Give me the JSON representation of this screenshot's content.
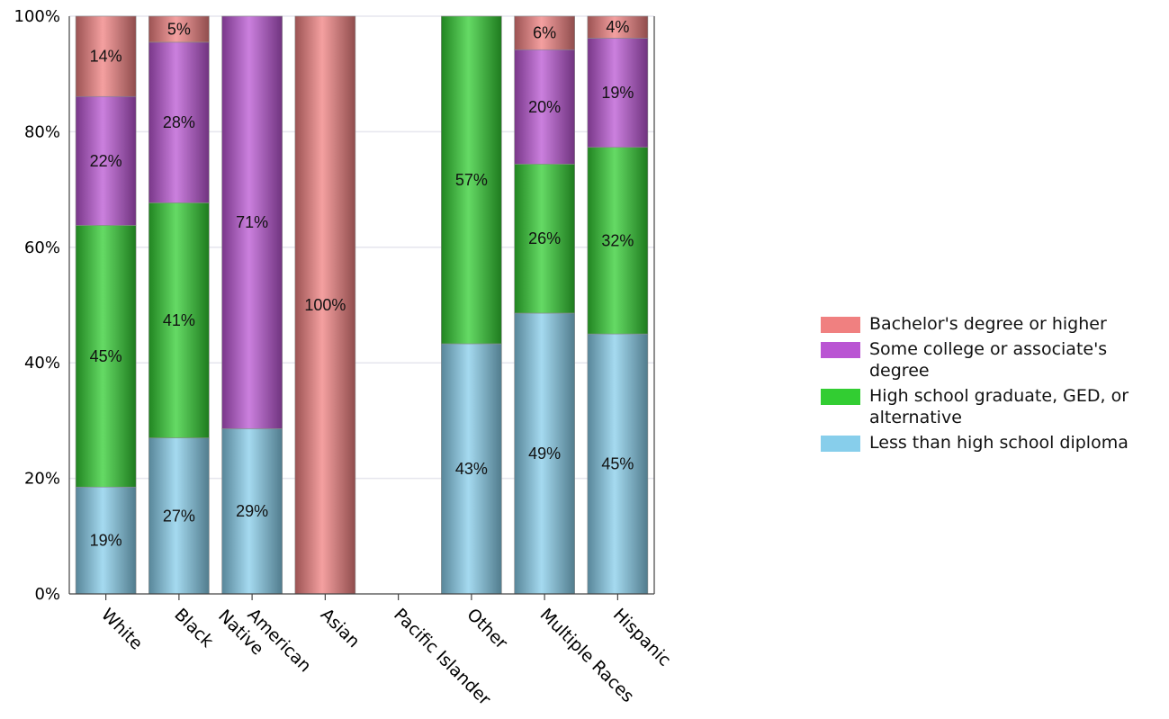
{
  "chart_data": {
    "type": "bar",
    "stacked": true,
    "categories": [
      "White",
      "Black",
      "American Native",
      "Asian",
      "Pacific Islander",
      "Other",
      "Multiple Races",
      "Hispanic"
    ],
    "category_lines": [
      [
        "White"
      ],
      [
        "Black"
      ],
      [
        "American",
        "Native"
      ],
      [
        "Asian"
      ],
      [
        "Pacific Islander"
      ],
      [
        "Other"
      ],
      [
        "Multiple Races"
      ],
      [
        "Hispanic"
      ]
    ],
    "series": [
      {
        "name": "Less than high school diploma",
        "color": "#87CEEB",
        "values": [
          18.5,
          27,
          28.6,
          0,
          0,
          43.3,
          48.6,
          45
        ],
        "labels": [
          "19%",
          "27%",
          "29%",
          "",
          "",
          "43%",
          "49%",
          "45%"
        ]
      },
      {
        "name": "High school graduate, GED, or alternative",
        "color": "#32CD32",
        "values": [
          45.3,
          40.7,
          0,
          0,
          0,
          56.7,
          25.8,
          32.3
        ],
        "labels": [
          "45%",
          "41%",
          "",
          "",
          "",
          "57%",
          "26%",
          "32%"
        ]
      },
      {
        "name": "Some college or associate's degree",
        "color": "#BA55D3",
        "values": [
          22.3,
          27.8,
          71.4,
          0,
          0,
          0,
          19.8,
          18.9
        ],
        "labels": [
          "22%",
          "28%",
          "71%",
          "",
          "",
          "",
          "20%",
          "19%"
        ]
      },
      {
        "name": "Bachelor's degree or higher",
        "color": "#F08080",
        "values": [
          13.9,
          4.5,
          0,
          100,
          0,
          0,
          5.8,
          3.8
        ],
        "labels": [
          "14%",
          "5%",
          "",
          "100%",
          "",
          "",
          "6%",
          "4%"
        ]
      }
    ],
    "y_ticks": [
      "0%",
      "20%",
      "40%",
      "60%",
      "80%",
      "100%"
    ],
    "ylim": [
      0,
      100
    ],
    "grid": true,
    "legend_position": "right"
  },
  "legend": [
    {
      "label": "Bachelor's degree or higher",
      "color": "#F08080"
    },
    {
      "label": "Some college or associate's degree",
      "color": "#BA55D3"
    },
    {
      "label": "High school graduate, GED, or alternative",
      "color": "#32CD32"
    },
    {
      "label": "Less than high school diploma",
      "color": "#87CEEB"
    }
  ]
}
